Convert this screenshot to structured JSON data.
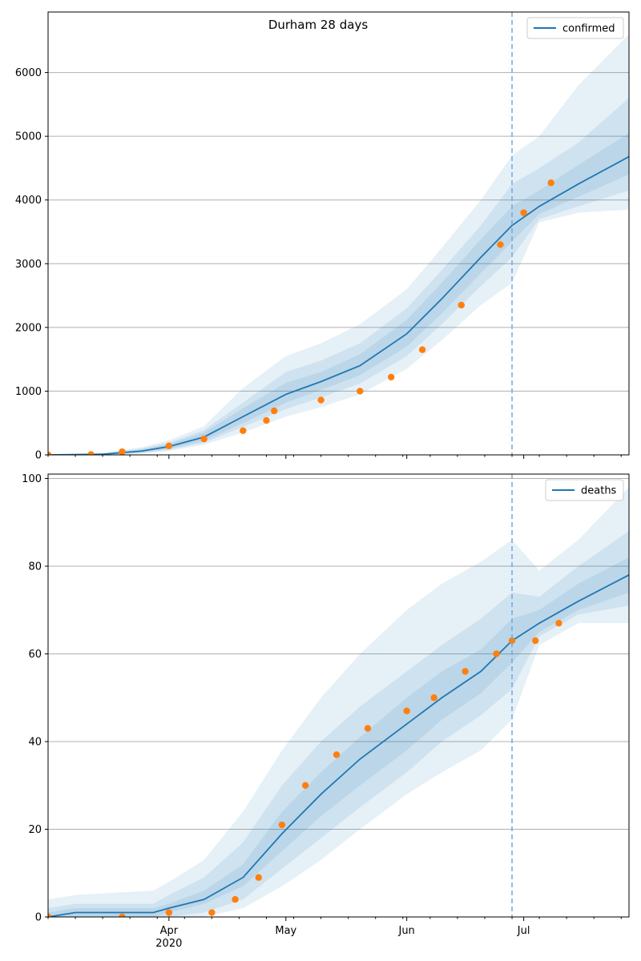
{
  "figure": {
    "title": "Durham 28 days"
  },
  "colors": {
    "model": "#1f77b4",
    "observed": "#ff7f0e",
    "band": "#1f77b4",
    "grid": "#b0b0b0",
    "vline": "#6fa8dc"
  },
  "chart_data": [
    {
      "type": "line",
      "name": "confirmed-panel",
      "legend": [
        "confirmed"
      ],
      "legend_position": "top-right",
      "grid": "horizontal",
      "x_axis": {
        "start": "2020-03-01",
        "end": "2020-07-28",
        "major_ticks": [
          "Apr",
          "May",
          "Jun",
          "Jul"
        ],
        "major_tick_dates": [
          "2020-04-01",
          "2020-05-01",
          "2020-06-01",
          "2020-07-01"
        ],
        "year_label": "2020",
        "tick_labels_shown": false
      },
      "ylim": [
        0,
        6950
      ],
      "yticks": [
        0,
        1000,
        2000,
        3000,
        4000,
        5000,
        6000
      ],
      "vertical_line_date": "2020-06-28",
      "model": {
        "name": "confirmed",
        "dates": [
          "2020-03-01",
          "2020-03-15",
          "2020-03-25",
          "2020-04-01",
          "2020-04-10",
          "2020-04-20",
          "2020-05-01",
          "2020-05-10",
          "2020-05-20",
          "2020-06-01",
          "2020-06-10",
          "2020-06-20",
          "2020-06-28",
          "2020-07-05",
          "2020-07-15",
          "2020-07-28"
        ],
        "values": [
          0,
          10,
          60,
          130,
          280,
          600,
          950,
          1150,
          1400,
          1900,
          2450,
          3100,
          3600,
          3900,
          4250,
          4680
        ],
        "band_90": [
          [
            0,
            0
          ],
          [
            0,
            30
          ],
          [
            20,
            120
          ],
          [
            60,
            230
          ],
          [
            160,
            450
          ],
          [
            350,
            1050
          ],
          [
            600,
            1550
          ],
          [
            750,
            1750
          ],
          [
            950,
            2050
          ],
          [
            1350,
            2600
          ],
          [
            1800,
            3250
          ],
          [
            2350,
            4000
          ],
          [
            2700,
            4700
          ],
          [
            3650,
            5000
          ],
          [
            3800,
            5800
          ],
          [
            3850,
            6600
          ]
        ],
        "band_50": [
          [
            0,
            0
          ],
          [
            0,
            20
          ],
          [
            30,
            100
          ],
          [
            80,
            190
          ],
          [
            190,
            390
          ],
          [
            440,
            820
          ],
          [
            720,
            1300
          ],
          [
            900,
            1480
          ],
          [
            1120,
            1750
          ],
          [
            1550,
            2300
          ],
          [
            2050,
            2900
          ],
          [
            2650,
            3600
          ],
          [
            3100,
            4250
          ],
          [
            3700,
            4500
          ],
          [
            3900,
            4900
          ],
          [
            4150,
            5600
          ]
        ],
        "band_25": [
          [
            0,
            0
          ],
          [
            5,
            15
          ],
          [
            40,
            85
          ],
          [
            95,
            170
          ],
          [
            220,
            350
          ],
          [
            500,
            730
          ],
          [
            820,
            1130
          ],
          [
            1020,
            1300
          ],
          [
            1250,
            1580
          ],
          [
            1700,
            2120
          ],
          [
            2220,
            2700
          ],
          [
            2850,
            3380
          ],
          [
            3350,
            3900
          ],
          [
            3780,
            4150
          ],
          [
            4050,
            4550
          ],
          [
            4400,
            5050
          ]
        ]
      },
      "observed": {
        "dates": [
          "2020-03-01",
          "2020-03-12",
          "2020-03-20",
          "2020-04-01",
          "2020-04-10",
          "2020-04-20",
          "2020-04-26",
          "2020-04-28",
          "2020-05-10",
          "2020-05-20",
          "2020-05-28",
          "2020-06-05",
          "2020-06-15",
          "2020-06-25",
          "2020-07-01",
          "2020-07-08"
        ],
        "values": [
          0,
          5,
          50,
          140,
          250,
          380,
          540,
          690,
          860,
          1000,
          1220,
          1650,
          2350,
          3300,
          3800,
          4270
        ]
      }
    },
    {
      "type": "line",
      "name": "deaths-panel",
      "legend": [
        "deaths"
      ],
      "legend_position": "top-right",
      "grid": "horizontal",
      "x_axis": {
        "start": "2020-03-01",
        "end": "2020-07-28",
        "major_ticks": [
          "Apr",
          "May",
          "Jun",
          "Jul"
        ],
        "major_tick_dates": [
          "2020-04-01",
          "2020-05-01",
          "2020-06-01",
          "2020-07-01"
        ],
        "year_label": "2020",
        "tick_labels_shown": true
      },
      "ylim": [
        0,
        101
      ],
      "yticks": [
        0,
        20,
        40,
        60,
        80,
        100
      ],
      "vertical_line_date": "2020-06-28",
      "model": {
        "name": "deaths",
        "dates": [
          "2020-03-01",
          "2020-03-08",
          "2020-03-28",
          "2020-04-01",
          "2020-04-10",
          "2020-04-20",
          "2020-04-30",
          "2020-05-10",
          "2020-05-20",
          "2020-06-01",
          "2020-06-10",
          "2020-06-20",
          "2020-06-28",
          "2020-07-05",
          "2020-07-15",
          "2020-07-28"
        ],
        "values": [
          0,
          1,
          1,
          2,
          4,
          9,
          19,
          28,
          36,
          44,
          50,
          56,
          63,
          67,
          72,
          78
        ],
        "band_90": [
          [
            0,
            4
          ],
          [
            0,
            5
          ],
          [
            0,
            6
          ],
          [
            0,
            8
          ],
          [
            0,
            13
          ],
          [
            2,
            24
          ],
          [
            7,
            38
          ],
          [
            13,
            50
          ],
          [
            20,
            60
          ],
          [
            28,
            70
          ],
          [
            33,
            76
          ],
          [
            38,
            81
          ],
          [
            45,
            86
          ],
          [
            62,
            79
          ],
          [
            67,
            86
          ],
          [
            67,
            98
          ]
        ],
        "band_50": [
          [
            0,
            2
          ],
          [
            0,
            3
          ],
          [
            0,
            3
          ],
          [
            0,
            5
          ],
          [
            1,
            9
          ],
          [
            4,
            17
          ],
          [
            11,
            30
          ],
          [
            18,
            40
          ],
          [
            25,
            48
          ],
          [
            33,
            56
          ],
          [
            40,
            62
          ],
          [
            46,
            68
          ],
          [
            52,
            74
          ],
          [
            64,
            73
          ],
          [
            69,
            80
          ],
          [
            71,
            88
          ]
        ],
        "band_25": [
          [
            0,
            1
          ],
          [
            0,
            2
          ],
          [
            0,
            2
          ],
          [
            1,
            3
          ],
          [
            3,
            6
          ],
          [
            7,
            12
          ],
          [
            15,
            24
          ],
          [
            23,
            33
          ],
          [
            30,
            41
          ],
          [
            38,
            50
          ],
          [
            45,
            56
          ],
          [
            51,
            61
          ],
          [
            58,
            68
          ],
          [
            65,
            70
          ],
          [
            70,
            76
          ],
          [
            74,
            82
          ]
        ]
      },
      "observed": {
        "dates": [
          "2020-03-01",
          "2020-03-20",
          "2020-04-01",
          "2020-04-12",
          "2020-04-18",
          "2020-04-24",
          "2020-04-30",
          "2020-05-06",
          "2020-05-14",
          "2020-05-22",
          "2020-06-01",
          "2020-06-08",
          "2020-06-16",
          "2020-06-24",
          "2020-06-28",
          "2020-07-04",
          "2020-07-10"
        ],
        "values": [
          0,
          0,
          1,
          1,
          4,
          9,
          21,
          30,
          37,
          43,
          47,
          50,
          56,
          60,
          63,
          63,
          67
        ]
      }
    }
  ]
}
